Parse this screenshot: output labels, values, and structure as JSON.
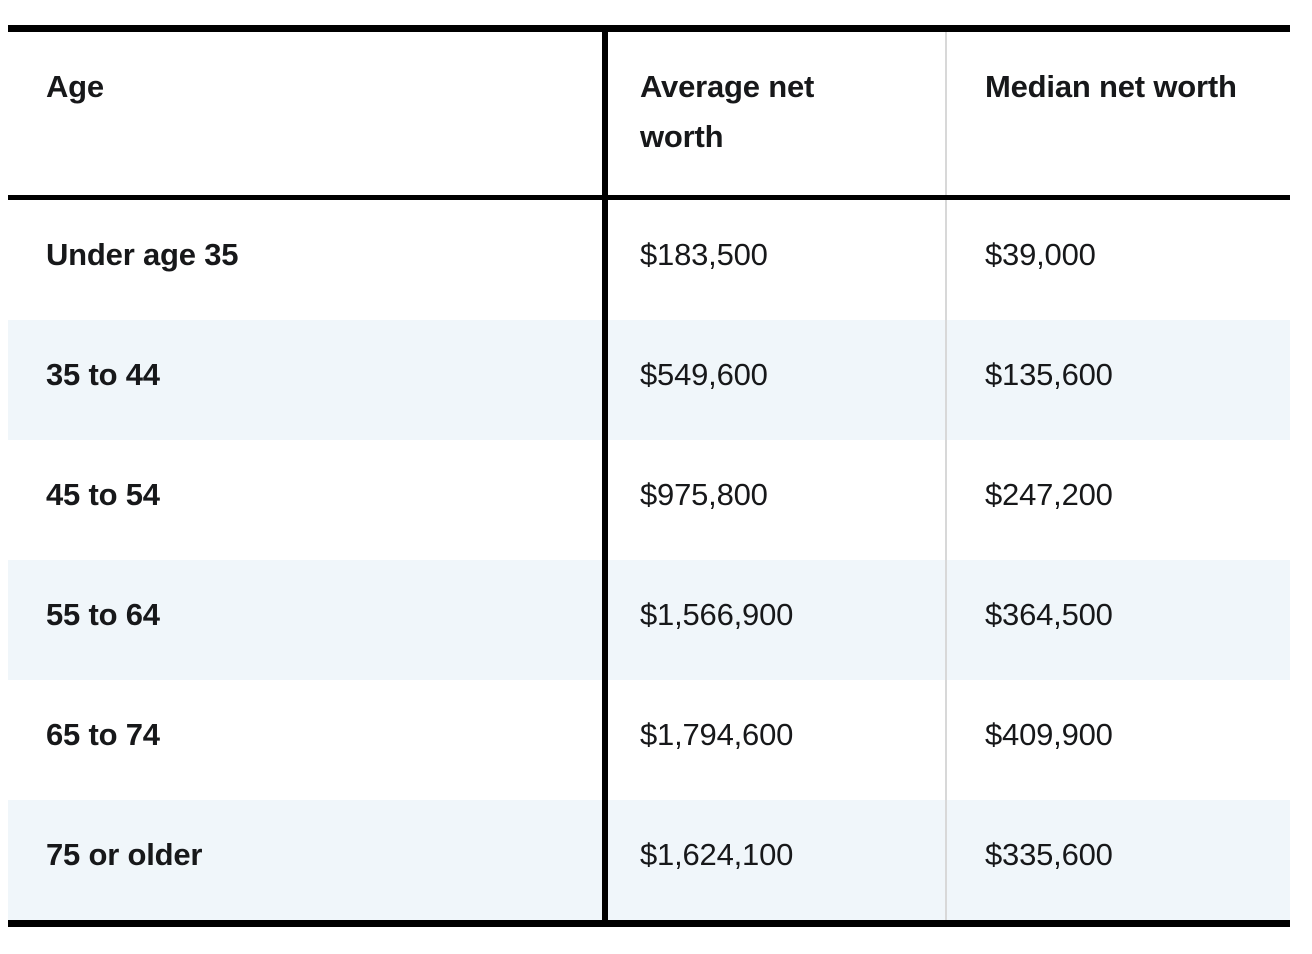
{
  "table": {
    "headers": {
      "age": "Age",
      "average": "Average net worth",
      "median": "Median net worth"
    },
    "rows": [
      {
        "age": "Under age 35",
        "average": "$183,500",
        "median": "$39,000"
      },
      {
        "age": "35 to 44",
        "average": "$549,600",
        "median": "$135,600"
      },
      {
        "age": "45 to 54",
        "average": "$975,800",
        "median": "$247,200"
      },
      {
        "age": "55 to 64",
        "average": "$1,566,900",
        "median": "$364,500"
      },
      {
        "age": "65 to 74",
        "average": "$1,794,600",
        "median": "$409,900"
      },
      {
        "age": "75 or older",
        "average": "$1,624,100",
        "median": "$335,600"
      }
    ]
  },
  "chart_data": {
    "type": "table",
    "columns": [
      "Age",
      "Average net worth",
      "Median net worth"
    ],
    "rows": [
      [
        "Under age 35",
        "$183,500",
        "$39,000"
      ],
      [
        "35 to 44",
        "$549,600",
        "$135,600"
      ],
      [
        "45 to 54",
        "$975,800",
        "$247,200"
      ],
      [
        "55 to 64",
        "$1,566,900",
        "$364,500"
      ],
      [
        "65 to 74",
        "$1,794,600",
        "$409,900"
      ],
      [
        "75 or older",
        "$1,624,100",
        "$335,600"
      ]
    ],
    "series": [
      {
        "name": "Average net worth",
        "values": [
          183500,
          549600,
          975800,
          1566900,
          1794600,
          1624100
        ]
      },
      {
        "name": "Median net worth",
        "values": [
          39000,
          135600,
          247200,
          364500,
          409900,
          335600
        ]
      }
    ],
    "layout_hints": {
      "stripe_rows": "even rows shaded",
      "thick_black_borders": [
        "top",
        "bottom",
        "below-header",
        "after-first-column"
      ],
      "thin_gray_divider": "before-third-column"
    }
  },
  "colors": {
    "stripe": "#f0f6fa",
    "border_black": "#000000",
    "divider_gray": "#d8d8d8",
    "text": "#17181a",
    "background": "#ffffff"
  }
}
